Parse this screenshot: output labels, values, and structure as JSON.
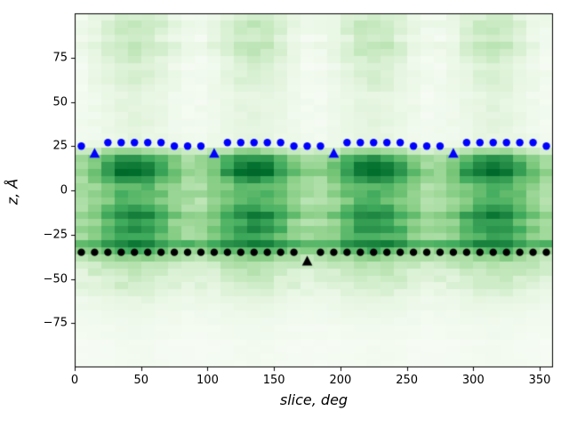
{
  "chart_data": {
    "type": "heatmap",
    "title": "",
    "xlabel": "slice, deg",
    "ylabel": "z, Å",
    "xlim": [
      0,
      360
    ],
    "ylim": [
      -100,
      100
    ],
    "grid": false,
    "legend": "none",
    "xtick_values": [
      0,
      50,
      100,
      150,
      200,
      250,
      300,
      350
    ],
    "xtick_labels": [
      "0",
      "50",
      "100",
      "150",
      "200",
      "250",
      "300",
      "350"
    ],
    "ytick_values": [
      -75,
      -50,
      -25,
      0,
      25,
      50,
      75
    ],
    "ytick_labels": [
      "−75",
      "−50",
      "−25",
      "0",
      "25",
      "50",
      "75"
    ],
    "colormap": "Greens",
    "colormap_stops": [
      "#f7fcf5",
      "#e5f5e0",
      "#c7e9c0",
      "#a1d99b",
      "#74c476",
      "#41ab5d",
      "#238b45",
      "#006d2c",
      "#00441b"
    ],
    "heatmap": {
      "x_start_deg": 0,
      "x_step_deg": 10,
      "n_cols": 36,
      "z_top": 100,
      "z_step": 4,
      "n_rows": 50,
      "row_z_centers_note": "rows from z=98 down to z=-98, 4 A each",
      "z_row_profile": [
        0.14,
        0.16,
        0.15,
        0.13,
        0.16,
        0.14,
        0.12,
        0.11,
        0.1,
        0.11,
        0.09,
        0.08,
        0.08,
        0.09,
        0.08,
        0.09,
        0.08,
        0.08,
        0.1,
        0.3,
        0.52,
        0.62,
        0.66,
        0.52,
        0.45,
        0.5,
        0.44,
        0.52,
        0.6,
        0.53,
        0.58,
        0.48,
        0.7,
        0.52,
        0.34,
        0.28,
        0.24,
        0.2,
        0.17,
        0.13,
        0.1,
        0.07,
        0.05,
        0.04,
        0.03,
        0.03,
        0.02,
        0.02,
        0.02,
        0.02
      ],
      "angular_modulation_amplitude": [
        0.08,
        0.1,
        0.1,
        0.1,
        0.11,
        0.1,
        0.09,
        0.08,
        0.07,
        0.07,
        0.06,
        0.05,
        0.05,
        0.05,
        0.05,
        0.05,
        0.04,
        0.04,
        0.04,
        0.1,
        0.18,
        0.24,
        0.25,
        0.18,
        0.12,
        0.12,
        0.13,
        0.16,
        0.2,
        0.17,
        0.18,
        0.14,
        0.12,
        0.1,
        0.07,
        0.05,
        0.05,
        0.04,
        0.04,
        0.03,
        0.03,
        0.02,
        0.02,
        0.01,
        0.01,
        0.01,
        0.01,
        0.01,
        0.01,
        0.01
      ],
      "modulation_period_deg": 90,
      "modulation_peak_deg": 45,
      "noise_amplitude": 0.09,
      "row_noise_amplitude": 0.05
    },
    "series": [
      {
        "name": "upper-boundary-dots",
        "marker": "circle",
        "color": "#0000ff",
        "x": [
          5,
          25,
          35,
          45,
          55,
          65,
          75,
          85,
          95,
          115,
          125,
          135,
          145,
          155,
          165,
          175,
          185,
          205,
          215,
          225,
          235,
          245,
          255,
          265,
          275,
          295,
          305,
          315,
          325,
          335,
          345,
          355
        ],
        "y": [
          25,
          27,
          27,
          27,
          27,
          27,
          25,
          25,
          25,
          27,
          27,
          27,
          27,
          27,
          25,
          25,
          25,
          27,
          27,
          27,
          27,
          27,
          25,
          25,
          25,
          27,
          27,
          27,
          27,
          27,
          27,
          25
        ]
      },
      {
        "name": "upper-boundary-triangles",
        "marker": "triangle-up",
        "color": "#0000ff",
        "x": [
          15,
          105,
          195,
          285
        ],
        "y": [
          21,
          21,
          21,
          21
        ]
      },
      {
        "name": "lower-boundary-dots",
        "marker": "circle",
        "color": "#000000",
        "x": [
          5,
          15,
          25,
          35,
          45,
          55,
          65,
          75,
          85,
          95,
          105,
          115,
          125,
          135,
          145,
          155,
          165,
          185,
          195,
          205,
          215,
          225,
          235,
          245,
          255,
          265,
          275,
          285,
          295,
          305,
          315,
          325,
          335,
          345,
          355
        ],
        "y": [
          -35,
          -35,
          -35,
          -35,
          -35,
          -35,
          -35,
          -35,
          -35,
          -35,
          -35,
          -35,
          -35,
          -35,
          -35,
          -35,
          -35,
          -35,
          -35,
          -35,
          -35,
          -35,
          -35,
          -35,
          -35,
          -35,
          -35,
          -35,
          -35,
          -35,
          -35,
          -35,
          -35,
          -35,
          -35
        ]
      },
      {
        "name": "lower-boundary-triangle",
        "marker": "triangle-up",
        "color": "#000000",
        "x": [
          175
        ],
        "y": [
          -40
        ]
      }
    ]
  }
}
